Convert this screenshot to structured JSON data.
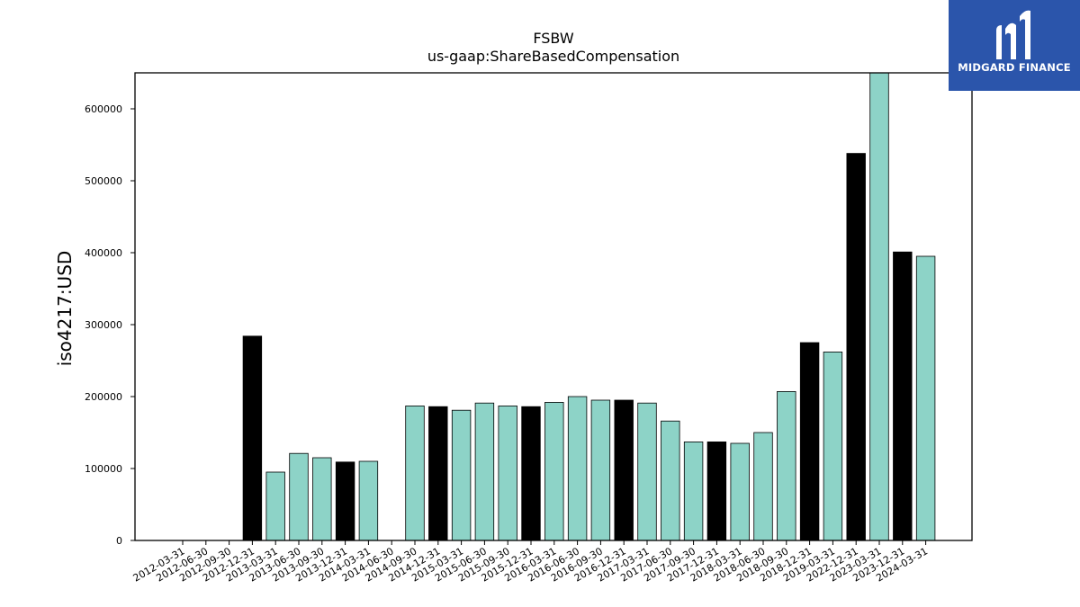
{
  "chart_data": {
    "type": "bar",
    "title": "FSBW",
    "subtitle": "us-gaap:ShareBasedCompensation",
    "xlabel": "",
    "ylabel": "iso4217:USD",
    "ylim": [
      0,
      650000
    ],
    "yticks": [
      0,
      100000,
      200000,
      300000,
      400000,
      500000,
      600000
    ],
    "grid": false,
    "colors": {
      "quarter": "#8dd3c7",
      "year_end": "#000000",
      "edge": "#000000"
    },
    "categories": [
      "2012-03-31",
      "2012-06-30",
      "2012-09-30",
      "2012-12-31",
      "2013-03-31",
      "2013-06-30",
      "2013-09-30",
      "2013-12-31",
      "2014-03-31",
      "2014-06-30",
      "2014-09-30",
      "2014-12-31",
      "2015-03-31",
      "2015-06-30",
      "2015-09-30",
      "2015-12-31",
      "2016-03-31",
      "2016-06-30",
      "2016-09-30",
      "2016-12-31",
      "2017-03-31",
      "2017-06-30",
      "2017-09-30",
      "2017-12-31",
      "2018-03-31",
      "2018-06-30",
      "2018-09-30",
      "2018-12-31",
      "2019-03-31",
      "2022-12-31",
      "2023-03-31",
      "2023-12-31",
      "2024-03-31"
    ],
    "values": [
      null,
      null,
      null,
      284000,
      95000,
      121000,
      115000,
      109000,
      110000,
      null,
      187000,
      186000,
      181000,
      191000,
      187000,
      186000,
      192000,
      200000,
      195000,
      195000,
      191000,
      166000,
      137000,
      137000,
      135000,
      150000,
      207000,
      275000,
      262000,
      538000,
      650000,
      401000,
      395000
    ],
    "highlight": [
      false,
      false,
      false,
      true,
      false,
      false,
      false,
      true,
      false,
      false,
      false,
      true,
      false,
      false,
      false,
      true,
      false,
      false,
      false,
      true,
      false,
      false,
      false,
      true,
      false,
      false,
      false,
      true,
      false,
      true,
      false,
      true,
      false
    ]
  },
  "logo": {
    "text": "MIDGARD FINANCE"
  }
}
